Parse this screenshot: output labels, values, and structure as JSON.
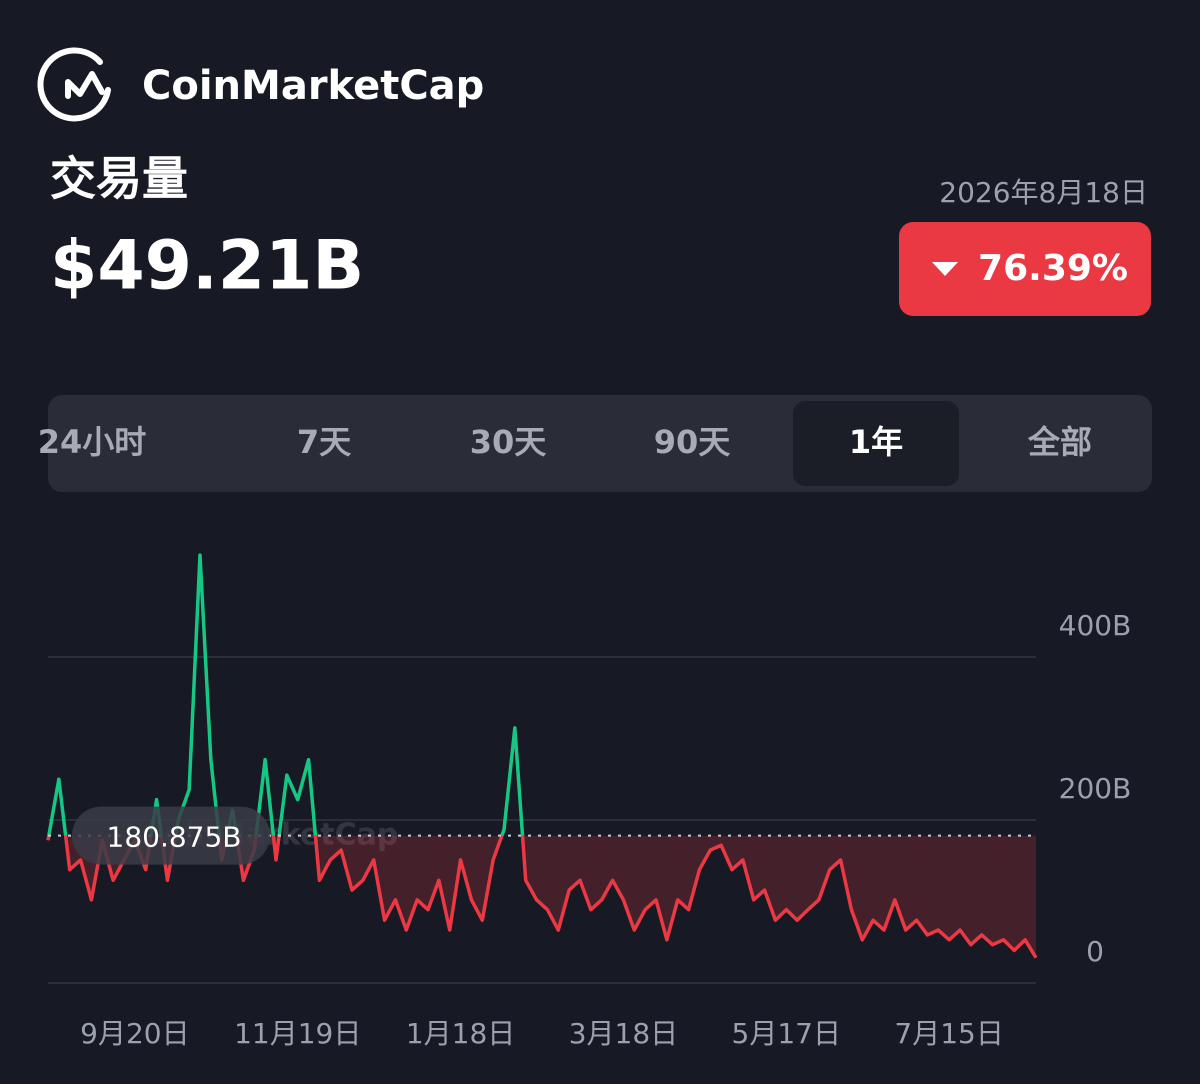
{
  "header": {
    "brand": "CoinMarketCap",
    "title": "交易量",
    "value": "$49.21B",
    "date": "2026年8月18日",
    "change": "76.39%"
  },
  "tabs": [
    "24小时",
    "7天",
    "30天",
    "90天",
    "1年",
    "全部"
  ],
  "selected_tab": 4,
  "chart_data": {
    "type": "line",
    "watermark": "CoinMarketCap",
    "categories": [
      null,
      null,
      null,
      null,
      null,
      null,
      null,
      null,
      "9月20日",
      null,
      null,
      null,
      null,
      null,
      null,
      null,
      null,
      null,
      null,
      null,
      null,
      null,
      null,
      "11月19日",
      null,
      null,
      null,
      null,
      null,
      null,
      null,
      null,
      null,
      null,
      null,
      null,
      null,
      null,
      "1月18日",
      null,
      null,
      null,
      null,
      null,
      null,
      null,
      null,
      null,
      null,
      null,
      null,
      null,
      null,
      "3月18日",
      null,
      null,
      null,
      null,
      null,
      null,
      null,
      null,
      null,
      null,
      null,
      null,
      null,
      null,
      "5月17日",
      null,
      null,
      null,
      null,
      null,
      null,
      null,
      null,
      null,
      null,
      null,
      null,
      null,
      null,
      "7月15日",
      null,
      null,
      null,
      null,
      null,
      null,
      null,
      null
    ],
    "series": [
      {
        "color": "#ea3943",
        "up_color": "#16c784",
        "values": [
          175,
          250,
          139,
          151,
          102,
          175,
          126,
          151,
          175,
          139,
          225,
          126,
          200,
          237,
          525,
          274,
          151,
          212,
          126,
          163,
          274,
          151,
          255,
          225,
          274,
          126,
          151,
          163,
          114,
          126,
          151,
          77,
          102,
          65,
          102,
          90,
          126,
          65,
          151,
          102,
          77,
          151,
          188,
          313,
          126,
          102,
          90,
          65,
          114,
          126,
          90,
          102,
          126,
          102,
          65,
          90,
          102,
          53,
          102,
          90,
          139,
          163,
          169,
          139,
          151,
          102,
          114,
          77,
          90,
          77,
          90,
          102,
          139,
          151,
          90,
          53,
          77,
          65,
          102,
          65,
          77,
          59,
          65,
          53,
          65,
          47,
          59,
          47,
          53,
          40,
          53,
          31
        ]
      }
    ],
    "baseline": {
      "value": 180.875,
      "label": "180.875B"
    },
    "ylim": [
      0,
      530
    ],
    "yticks": [
      0,
      {
        "value": 200,
        "label": "200B"
      },
      {
        "value": 400,
        "label": "400B"
      }
    ],
    "grid": true
  }
}
